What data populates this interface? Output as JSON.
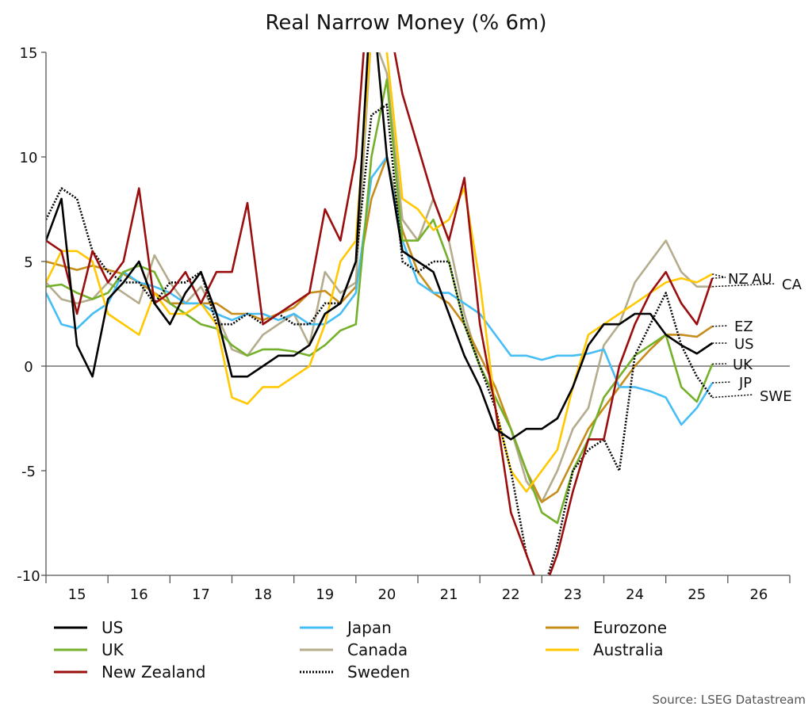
{
  "chart_data": {
    "type": "line",
    "title": "Real Narrow Money (% 6m)",
    "xlabel": "",
    "ylabel": "",
    "ylim": [
      -10,
      15
    ],
    "yticks": [
      "15",
      "10",
      "5",
      "0",
      "-5",
      "-10"
    ],
    "xlim": [
      2015,
      2027
    ],
    "xtick_labels": [
      "15",
      "16",
      "17",
      "18",
      "19",
      "20",
      "21",
      "22",
      "23",
      "24",
      "25",
      "26"
    ],
    "grid": false,
    "legend_position": "bottom",
    "source": "Source: LSEG Datastream",
    "dates": [
      "2015Q1",
      "2015Q2",
      "2015Q3",
      "2015Q4",
      "2016Q1",
      "2016Q2",
      "2016Q3",
      "2016Q4",
      "2017Q1",
      "2017Q2",
      "2017Q3",
      "2017Q4",
      "2018Q1",
      "2018Q2",
      "2018Q3",
      "2018Q4",
      "2019Q1",
      "2019Q2",
      "2019Q3",
      "2019Q4",
      "2020Q1",
      "2020Q2",
      "2020Q3",
      "2020Q4",
      "2021Q1",
      "2021Q2",
      "2021Q3",
      "2021Q4",
      "2022Q1",
      "2022Q2",
      "2022Q3",
      "2022Q4",
      "2023Q1",
      "2023Q2",
      "2023Q3",
      "2023Q4",
      "2024Q1",
      "2024Q2",
      "2024Q3",
      "2024Q4",
      "2025Q1",
      "2025Q2",
      "2025Q3",
      "2025Q4"
    ],
    "series": [
      {
        "name": "US",
        "end_label": "US",
        "color": "#000000",
        "dotted": false,
        "values": [
          6,
          8,
          1,
          -0.5,
          3.2,
          4,
          5,
          3,
          2,
          3.5,
          4.5,
          2.5,
          -0.5,
          -0.5,
          0,
          0.5,
          0.5,
          1,
          2.5,
          3,
          5,
          18,
          10,
          5.5,
          5,
          4.5,
          2.5,
          0.5,
          -1,
          -3,
          -3.5,
          -3,
          -3,
          -2.5,
          -1,
          1,
          2,
          2,
          2.5,
          2.5,
          1.5,
          1,
          0.6,
          1.1
        ]
      },
      {
        "name": "Japan",
        "end_label": "JP",
        "color": "#45bdf5",
        "dotted": false,
        "values": [
          3.5,
          2,
          1.8,
          2.5,
          3,
          4.5,
          4,
          3.8,
          3.5,
          3,
          3,
          2.5,
          2.2,
          2.5,
          2.5,
          2.2,
          2.5,
          2,
          2,
          2.5,
          3.5,
          9,
          10,
          6,
          4,
          3.5,
          3.5,
          3,
          2.5,
          1.5,
          0.5,
          0.5,
          0.3,
          0.5,
          0.5,
          0.6,
          0.8,
          -1,
          -1,
          -1.2,
          -1.5,
          -2.8,
          -2,
          -0.8
        ]
      },
      {
        "name": "Eurozone",
        "end_label": "EZ",
        "color": "#c68d1a",
        "dotted": false,
        "values": [
          5,
          4.8,
          4.6,
          4.8,
          4.6,
          4.4,
          4,
          3.5,
          3,
          3,
          3,
          3,
          2.5,
          2.5,
          2.2,
          2.5,
          2.8,
          3.5,
          3.6,
          3,
          3.8,
          8,
          10,
          6.5,
          4.5,
          3.5,
          3,
          2,
          0.5,
          -1,
          -3,
          -5,
          -6.5,
          -6,
          -4.5,
          -3,
          -2,
          -1,
          0,
          0.8,
          1.5,
          1.5,
          1.4,
          1.9
        ]
      },
      {
        "name": "UK",
        "end_label": "UK",
        "color": "#74b02a",
        "dotted": false,
        "values": [
          3.8,
          3.9,
          3.5,
          3.2,
          3.5,
          4.5,
          4.8,
          4.5,
          3,
          2.5,
          2,
          1.8,
          1,
          0.5,
          0.8,
          0.8,
          0.7,
          0.5,
          1,
          1.7,
          2,
          10,
          13.7,
          6,
          6,
          7,
          5,
          2,
          0,
          -1.5,
          -3,
          -5,
          -7,
          -7.5,
          -5,
          -3.5,
          -1.5,
          -0.5,
          0.5,
          1,
          1.5,
          -1,
          -1.7,
          0.1
        ]
      },
      {
        "name": "Canada",
        "end_label": "CA",
        "color": "#b4ac8c",
        "dotted": false,
        "values": [
          4,
          3.2,
          3,
          3.2,
          4,
          3.5,
          3,
          5.3,
          4,
          3,
          3.8,
          2.5,
          0.8,
          0.5,
          1.5,
          2,
          2.5,
          1,
          4.5,
          3.5,
          4,
          16,
          14,
          7,
          6,
          8,
          6,
          2.5,
          0,
          -1.5,
          -3,
          -5.5,
          -6.5,
          -5,
          -3,
          -2,
          1,
          2,
          4,
          5,
          6,
          4.5,
          3.8,
          3.8
        ]
      },
      {
        "name": "Australia",
        "end_label": "AU",
        "color": "#ffc800",
        "dotted": false,
        "values": [
          4,
          5.5,
          5.5,
          5,
          2.5,
          2,
          1.5,
          3.5,
          2.5,
          2.5,
          3,
          2,
          -1.5,
          -1.8,
          -1,
          -1,
          -0.5,
          0,
          2,
          5,
          6,
          16,
          15,
          8,
          7.5,
          6.5,
          7,
          8.5,
          4,
          -2,
          -5,
          -6,
          -5,
          -4,
          -1,
          1.5,
          2,
          2.5,
          3,
          3.5,
          4,
          4.2,
          4,
          4.4
        ]
      },
      {
        "name": "New Zealand",
        "end_label": "NZ",
        "color": "#9a0e0e",
        "dotted": false,
        "values": [
          6,
          5.5,
          2.5,
          5.5,
          4,
          5,
          8.5,
          3,
          3.5,
          4.5,
          3,
          4.5,
          4.5,
          7.8,
          2,
          2.5,
          3,
          3.5,
          7.5,
          6,
          10,
          20,
          17,
          13,
          10.5,
          8,
          6,
          9,
          2,
          -2,
          -7,
          -9,
          -11,
          -9,
          -6,
          -3.5,
          -3.5,
          0,
          2,
          3.5,
          4.5,
          3,
          2,
          4.2
        ]
      },
      {
        "name": "Sweden",
        "end_label": "SWE",
        "color": "#000000",
        "dotted": true,
        "values": [
          7,
          8.5,
          8,
          5.5,
          4.5,
          4,
          4,
          3,
          4,
          4,
          4.5,
          2,
          2,
          2.5,
          2,
          2.5,
          2,
          2,
          3,
          3,
          5,
          12,
          12.5,
          5,
          4.5,
          5,
          5,
          2,
          0,
          -2,
          -5,
          -9,
          -11,
          -8.5,
          -5,
          -4,
          -3.5,
          -5,
          0.5,
          2,
          3.5,
          1,
          -0.5,
          -1.5
        ]
      }
    ]
  }
}
